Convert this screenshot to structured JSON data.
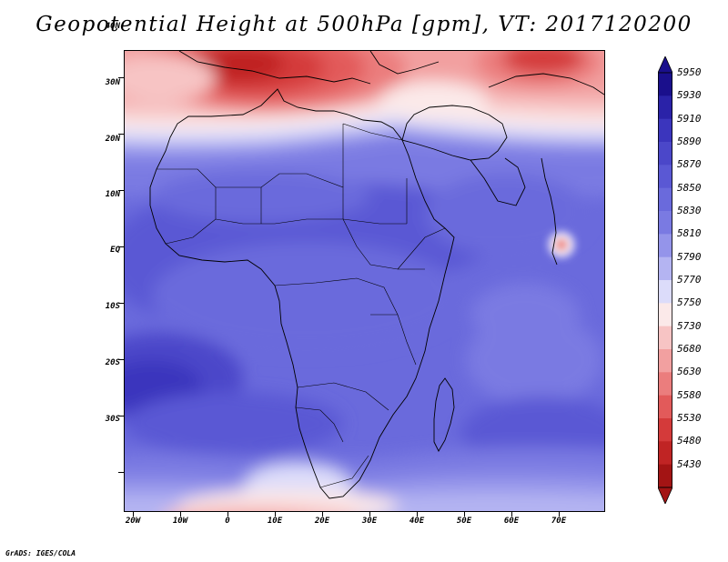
{
  "title": "Geopotential Height at 500hPa [gpm], VT: 2017120200",
  "credit": "GrADS: IGES/COLA",
  "map": {
    "lat_labels": [
      "40N",
      "30N",
      "20N",
      "10N",
      "EQ",
      "10S",
      "20S",
      "30S"
    ],
    "lon_labels": [
      "20W",
      "10W",
      "0",
      "10E",
      "20E",
      "30E",
      "40E",
      "50E",
      "60E",
      "70E"
    ]
  },
  "colorbar": {
    "levels": [
      "5950",
      "5930",
      "5910",
      "5890",
      "5870",
      "5850",
      "5830",
      "5810",
      "5790",
      "5770",
      "5750",
      "5730",
      "5680",
      "5630",
      "5580",
      "5530",
      "5480",
      "5430"
    ],
    "colors": [
      "#1a0f8c",
      "#2a22a8",
      "#3b35bd",
      "#4b47c9",
      "#5a58d4",
      "#6a6adc",
      "#7a7ae2",
      "#9494ea",
      "#b4b4f2",
      "#dcdcfa",
      "#fbe9e9",
      "#f7c4c4",
      "#f2a0a0",
      "#eb7d7d",
      "#e25a5a",
      "#d43a3a",
      "#c02424",
      "#a31414"
    ]
  }
}
